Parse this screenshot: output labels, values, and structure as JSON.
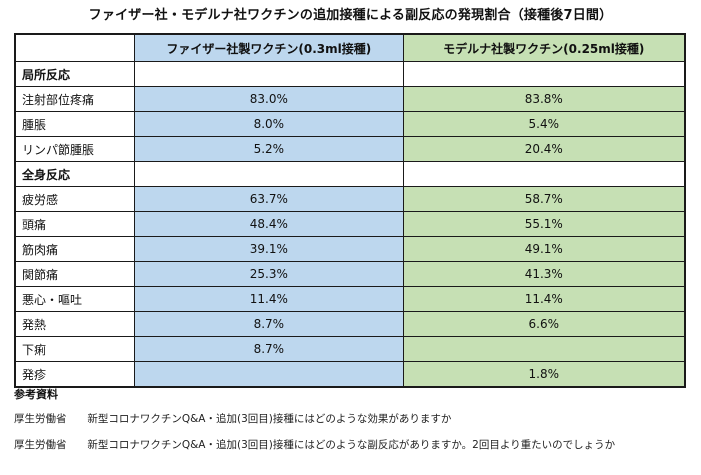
{
  "title": "ファイザー社・モデルナ社ワクチンの追加接種による副反応の発現割合（接種後7日間）",
  "table": {
    "headers": {
      "blank": "",
      "pfizer": "ファイザー社製ワクチン(0.3ml接種)",
      "moderna": "モデルナ社製ワクチン(0.25ml接種)"
    },
    "sections": [
      {
        "name": "局所反応",
        "rows": [
          {
            "label": "注射部位疼痛",
            "pfizer": "83.0%",
            "moderna": "83.8%"
          },
          {
            "label": "腫脹",
            "pfizer": "8.0%",
            "moderna": "5.4%"
          },
          {
            "label": "リンパ節腫脹",
            "pfizer": "5.2%",
            "moderna": "20.4%"
          }
        ]
      },
      {
        "name": "全身反応",
        "rows": [
          {
            "label": "疲労感",
            "pfizer": "63.7%",
            "moderna": "58.7%"
          },
          {
            "label": "頭痛",
            "pfizer": "48.4%",
            "moderna": "55.1%"
          },
          {
            "label": "筋肉痛",
            "pfizer": "39.1%",
            "moderna": "49.1%"
          },
          {
            "label": "関節痛",
            "pfizer": "25.3%",
            "moderna": "41.3%"
          },
          {
            "label": "悪心・嘔吐",
            "pfizer": "11.4%",
            "moderna": "11.4%"
          },
          {
            "label": "発熱",
            "pfizer": "8.7%",
            "moderna": "6.6%"
          },
          {
            "label": "下痢",
            "pfizer": "8.7%",
            "moderna": ""
          },
          {
            "label": "発疹",
            "pfizer": "",
            "moderna": "1.8%"
          }
        ]
      }
    ]
  },
  "references": {
    "title": "参考資料",
    "items": [
      {
        "org": "厚生労働省",
        "text": "新型コロナワクチンQ&A・追加(3回目)接種にはどのような効果がありますか"
      },
      {
        "org": "厚生労働省",
        "text": "新型コロナワクチンQ&A・追加(3回目)接種にはどのような副反応がありますか。2回目より重たいのでしょうか"
      }
    ]
  },
  "colors": {
    "pfizer_fill": "#bdd7ee",
    "moderna_fill": "#c6e0b4",
    "border": "#1a1a1a"
  }
}
